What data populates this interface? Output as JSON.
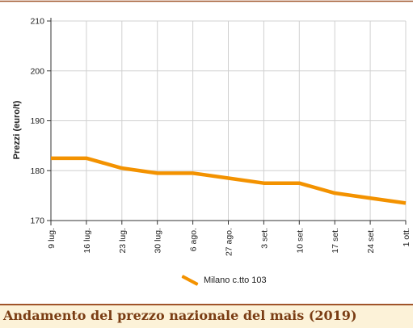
{
  "chart_data": {
    "type": "line",
    "title": "",
    "xlabel": "",
    "ylabel": "Prezzi (euro/t)",
    "ylim": [
      170,
      210
    ],
    "yticks": [
      170,
      180,
      190,
      200,
      210
    ],
    "grid": true,
    "legend_position": "bottom-center",
    "categories": [
      "9 lug.",
      "16 lug.",
      "23 lug.",
      "30 lug.",
      "6 ago.",
      "27 ago.",
      "3 set.",
      "10 set.",
      "17 set.",
      "24 set.",
      "1 ott."
    ],
    "series": [
      {
        "name": "Milano c.tto 103",
        "color": "#f39200",
        "values": [
          182.5,
          182.5,
          180.5,
          179.5,
          179.5,
          178.5,
          177.5,
          177.5,
          175.5,
          174.5,
          173.5
        ]
      }
    ]
  },
  "caption": {
    "text": "Andamento del prezzo nazionale del mais (2019)",
    "text_color": "#7a3d14",
    "background_color": "#fcf2d8",
    "border_color": "#a0542a"
  }
}
